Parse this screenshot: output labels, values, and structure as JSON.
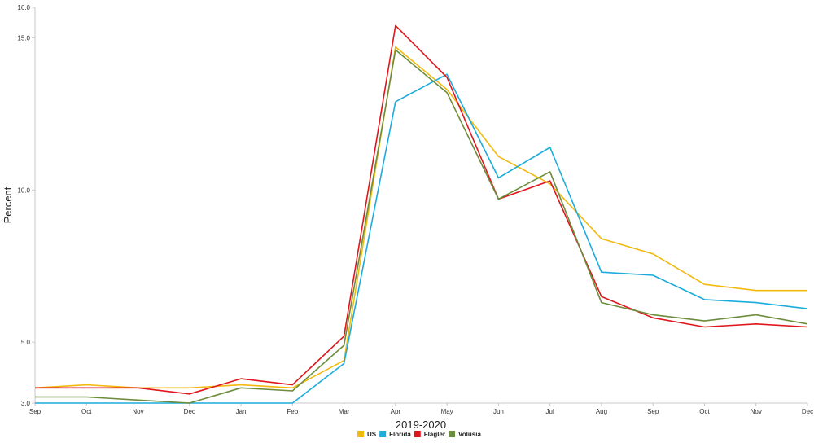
{
  "chart_data": {
    "type": "line",
    "title": "",
    "xlabel": "2019-2020",
    "ylabel": "Percent",
    "categories": [
      "Sep",
      "Oct",
      "Nov",
      "Dec",
      "Jan",
      "Feb",
      "Mar",
      "Apr",
      "May",
      "Jun",
      "Jul",
      "Aug",
      "Sep",
      "Oct",
      "Nov",
      "Dec"
    ],
    "ylim": [
      3.0,
      16.0
    ],
    "yticks": [
      3.0,
      5.0,
      10.0,
      15.0,
      16.0
    ],
    "ytick_labels": [
      "3.0",
      "5.0",
      "10.0",
      "15.0",
      "16.0"
    ],
    "grid": false,
    "legend_position": "bottom-center",
    "series": [
      {
        "name": "US",
        "color": "#f2b90f",
        "values": [
          3.5,
          3.6,
          3.5,
          3.5,
          3.6,
          3.5,
          4.4,
          14.7,
          13.3,
          11.1,
          10.2,
          8.4,
          7.9,
          6.9,
          6.7,
          6.7
        ]
      },
      {
        "name": "Florida",
        "color": "#1cacdc",
        "values": [
          3.0,
          3.0,
          3.0,
          3.0,
          3.0,
          3.0,
          4.3,
          12.9,
          13.8,
          10.4,
          11.4,
          7.3,
          7.2,
          6.4,
          6.3,
          6.1
        ]
      },
      {
        "name": "Flagler",
        "color": "#e0161c",
        "values": [
          3.5,
          3.5,
          3.5,
          3.3,
          3.8,
          3.6,
          5.2,
          15.4,
          13.7,
          9.7,
          10.3,
          6.5,
          5.8,
          5.5,
          5.6,
          5.5
        ]
      },
      {
        "name": "Volusia",
        "color": "#6d8c3c",
        "values": [
          3.2,
          3.2,
          3.1,
          3.0,
          3.5,
          3.4,
          4.9,
          14.6,
          13.2,
          9.7,
          10.6,
          6.3,
          5.9,
          5.7,
          5.9,
          5.6
        ]
      }
    ]
  }
}
